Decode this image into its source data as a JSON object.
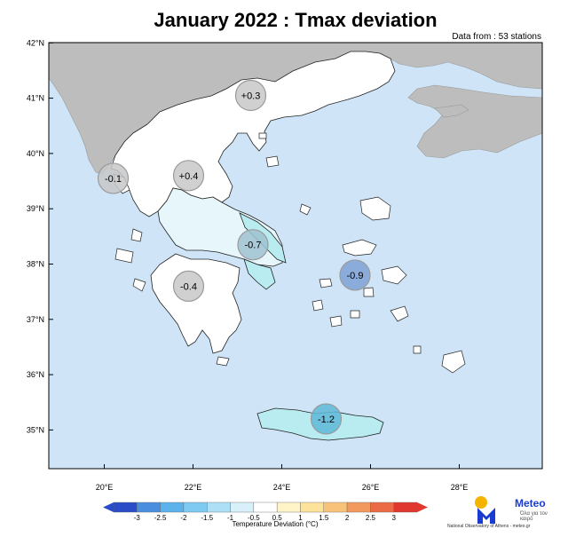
{
  "title": "January 2022 : Tmax deviation",
  "subtitle": "Data from : 53 stations",
  "lat_ticks": [
    "42°N",
    "41°N",
    "40°N",
    "39°N",
    "38°N",
    "37°N",
    "36°N",
    "35°N"
  ],
  "lon_ticks": [
    "20°E",
    "22°E",
    "24°E",
    "26°E",
    "28°E"
  ],
  "colors": {
    "sea": "#cfe5f7",
    "foreign_land": "#bdbdbd",
    "greece_neutral": "#ffffff",
    "light_cold": "#e6f6fb",
    "cold": "#b8ecf0",
    "frame": "#000000"
  },
  "stations": [
    {
      "label": "+0.3",
      "lon": 23.3,
      "lat": 41.05,
      "value": 0.3,
      "fill": "#c8c8c8"
    },
    {
      "label": "-0.1",
      "lon": 20.2,
      "lat": 39.55,
      "value": -0.1,
      "fill": "#c8c8c8"
    },
    {
      "label": "+0.4",
      "lon": 21.9,
      "lat": 39.6,
      "value": 0.4,
      "fill": "#c8c8c8"
    },
    {
      "label": "-0.7",
      "lon": 23.35,
      "lat": 38.35,
      "value": -0.7,
      "fill": "#9fc2d0"
    },
    {
      "label": "-0.9",
      "lon": 25.65,
      "lat": 37.8,
      "value": -0.9,
      "fill": "#7fa2d6"
    },
    {
      "label": "-0.4",
      "lon": 21.9,
      "lat": 37.6,
      "value": -0.4,
      "fill": "#c8c8c8"
    },
    {
      "label": "-1.2",
      "lon": 25.0,
      "lat": 35.2,
      "value": -1.2,
      "fill": "#5fb8d8"
    }
  ],
  "legend": {
    "title": "Temperature Deviation (°C)",
    "ticks": [
      "-3",
      "-2.5",
      "-2",
      "-1.5",
      "-1",
      "-0.5",
      "0.5",
      "1",
      "1.5",
      "2",
      "2.5",
      "3"
    ],
    "colors": [
      "#2b4cc8",
      "#4a8ee0",
      "#5cb3ec",
      "#7fcaf2",
      "#ade0f6",
      "#d8f0fa",
      "#ffffff",
      "#fff3c8",
      "#fde29a",
      "#f9c27a",
      "#f29a5e",
      "#ea6b46",
      "#e0382e"
    ]
  },
  "logo": {
    "name": "Meteo",
    "tagline": "Όλα για τον καιρό",
    "credit": "National Observatory of Athens - meteo.gr"
  }
}
